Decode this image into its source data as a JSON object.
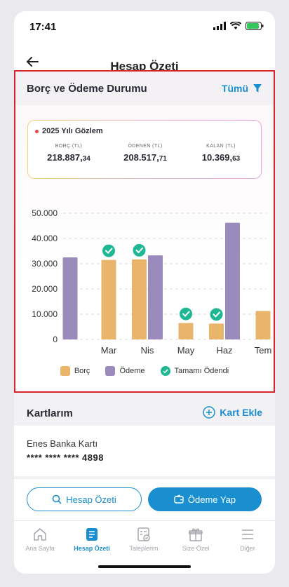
{
  "status": {
    "time": "17:41"
  },
  "header": {
    "title": "Hesap Özeti"
  },
  "card": {
    "title": "Borç ve Ödeme Durumu",
    "filter_label": "Tümü",
    "summary": {
      "label": "2025 Yılı Gözlem",
      "items": [
        {
          "label": "BORÇ (TL)",
          "main": "218.887,",
          "cents": "34"
        },
        {
          "label": "ÖDENEN (TL)",
          "main": "208.517,",
          "cents": "71"
        },
        {
          "label": "KALAN (TL)",
          "main": "10.369,",
          "cents": "63"
        }
      ]
    }
  },
  "chart_data": {
    "type": "bar",
    "categories": [
      "",
      "Mar",
      "Nis",
      "May",
      "Haz",
      "Tem"
    ],
    "series": [
      {
        "name": "Borç",
        "values": [
          null,
          31500,
          31700,
          6500,
          6300,
          11300
        ]
      },
      {
        "name": "Ödeme",
        "values": [
          32500,
          null,
          33300,
          null,
          46200,
          null
        ]
      }
    ],
    "paid_marks": [
      "Mar",
      "Nis",
      "May",
      "Haz"
    ],
    "yticks": [
      "50.000",
      "40.000",
      "30.000",
      "20.000",
      "10.000",
      "0"
    ],
    "ylim": [
      0,
      50000
    ],
    "colors": {
      "borc": "#e9b56a",
      "odeme": "#9b8bbd",
      "paid": "#20b894"
    }
  },
  "legend": {
    "borc": "Borç",
    "odeme": "Ödeme",
    "paid": "Tamamı Ödendi"
  },
  "kartlarim": {
    "title": "Kartlarım",
    "add_label": "Kart Ekle",
    "card_name": "Enes Banka Kartı",
    "card_number": "**** **** **** 4898"
  },
  "actions": {
    "summary_label": "Hesap Özeti",
    "pay_label": "Ödeme Yap"
  },
  "tabs": [
    {
      "label": "Ana Sayfa",
      "icon": "home-icon"
    },
    {
      "label": "Hesap Özeti",
      "icon": "statement-icon"
    },
    {
      "label": "Taleplerim",
      "icon": "requests-icon"
    },
    {
      "label": "Size Özel",
      "icon": "gift-icon"
    },
    {
      "label": "Diğer",
      "icon": "menu-icon"
    }
  ]
}
